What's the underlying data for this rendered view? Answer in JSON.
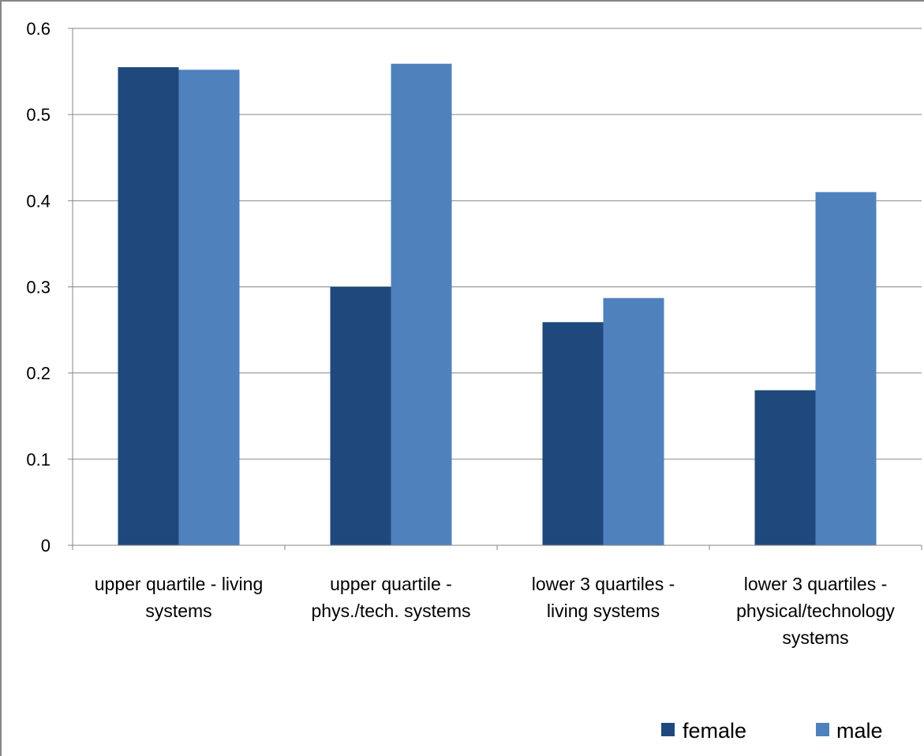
{
  "chart_data": {
    "type": "bar",
    "categories": [
      [
        "upper quartile - living",
        "systems"
      ],
      [
        "upper quartile -",
        "phys./tech. systems"
      ],
      [
        "lower 3 quartiles -",
        "living systems"
      ],
      [
        "lower 3 quartiles -",
        "physical/technology",
        "systems"
      ]
    ],
    "series": [
      {
        "name": "female",
        "values": [
          0.555,
          0.3,
          0.259,
          0.18
        ],
        "color": "#1f497d"
      },
      {
        "name": "male",
        "values": [
          0.552,
          0.559,
          0.287,
          0.41
        ],
        "color": "#4f81bd"
      }
    ],
    "ylim": [
      0,
      0.6
    ],
    "yticks": [
      "0",
      "0.1",
      "0.2",
      "0.3",
      "0.4",
      "0.5",
      "0.6"
    ],
    "grid": true,
    "legend": "bottom-right",
    "gridline_color": "#868686"
  }
}
